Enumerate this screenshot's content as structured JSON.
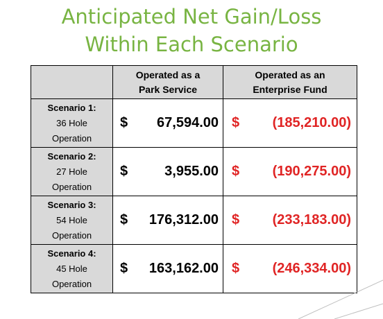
{
  "title": {
    "line1": "Anticipated Net Gain/Loss",
    "line2": "Within Each Scenario"
  },
  "headers": {
    "park_line1": "Operated as a",
    "park_line2": "Park Service",
    "enterprise_line1": "Operated as an",
    "enterprise_line2": "Enterprise Fund"
  },
  "rows": [
    {
      "name": "Scenario 1:",
      "holes": "36 Hole",
      "label": "Operation",
      "park_currency": "$",
      "park_value": "67,594.00",
      "enterprise_currency": "$",
      "enterprise_value": "(185,210.00)"
    },
    {
      "name": "Scenario 2:",
      "holes": "27 Hole",
      "label": "Operation",
      "park_currency": "$",
      "park_value": "3,955.00",
      "enterprise_currency": "$",
      "enterprise_value": "(190,275.00)"
    },
    {
      "name": "Scenario 3:",
      "holes": "54 Hole",
      "label": "Operation",
      "park_currency": "$",
      "park_value": "176,312.00",
      "enterprise_currency": "$",
      "enterprise_value": "(233,183.00)"
    },
    {
      "name": "Scenario 4:",
      "holes": "45 Hole",
      "label": "Operation",
      "park_currency": "$",
      "park_value": "163,162.00",
      "enterprise_currency": "$",
      "enterprise_value": "(246,334.00)"
    }
  ],
  "colors": {
    "title": "#78b442",
    "negative": "#e02424",
    "header_fill": "#d9d9d9",
    "decor_line": "#bfbfbf"
  }
}
